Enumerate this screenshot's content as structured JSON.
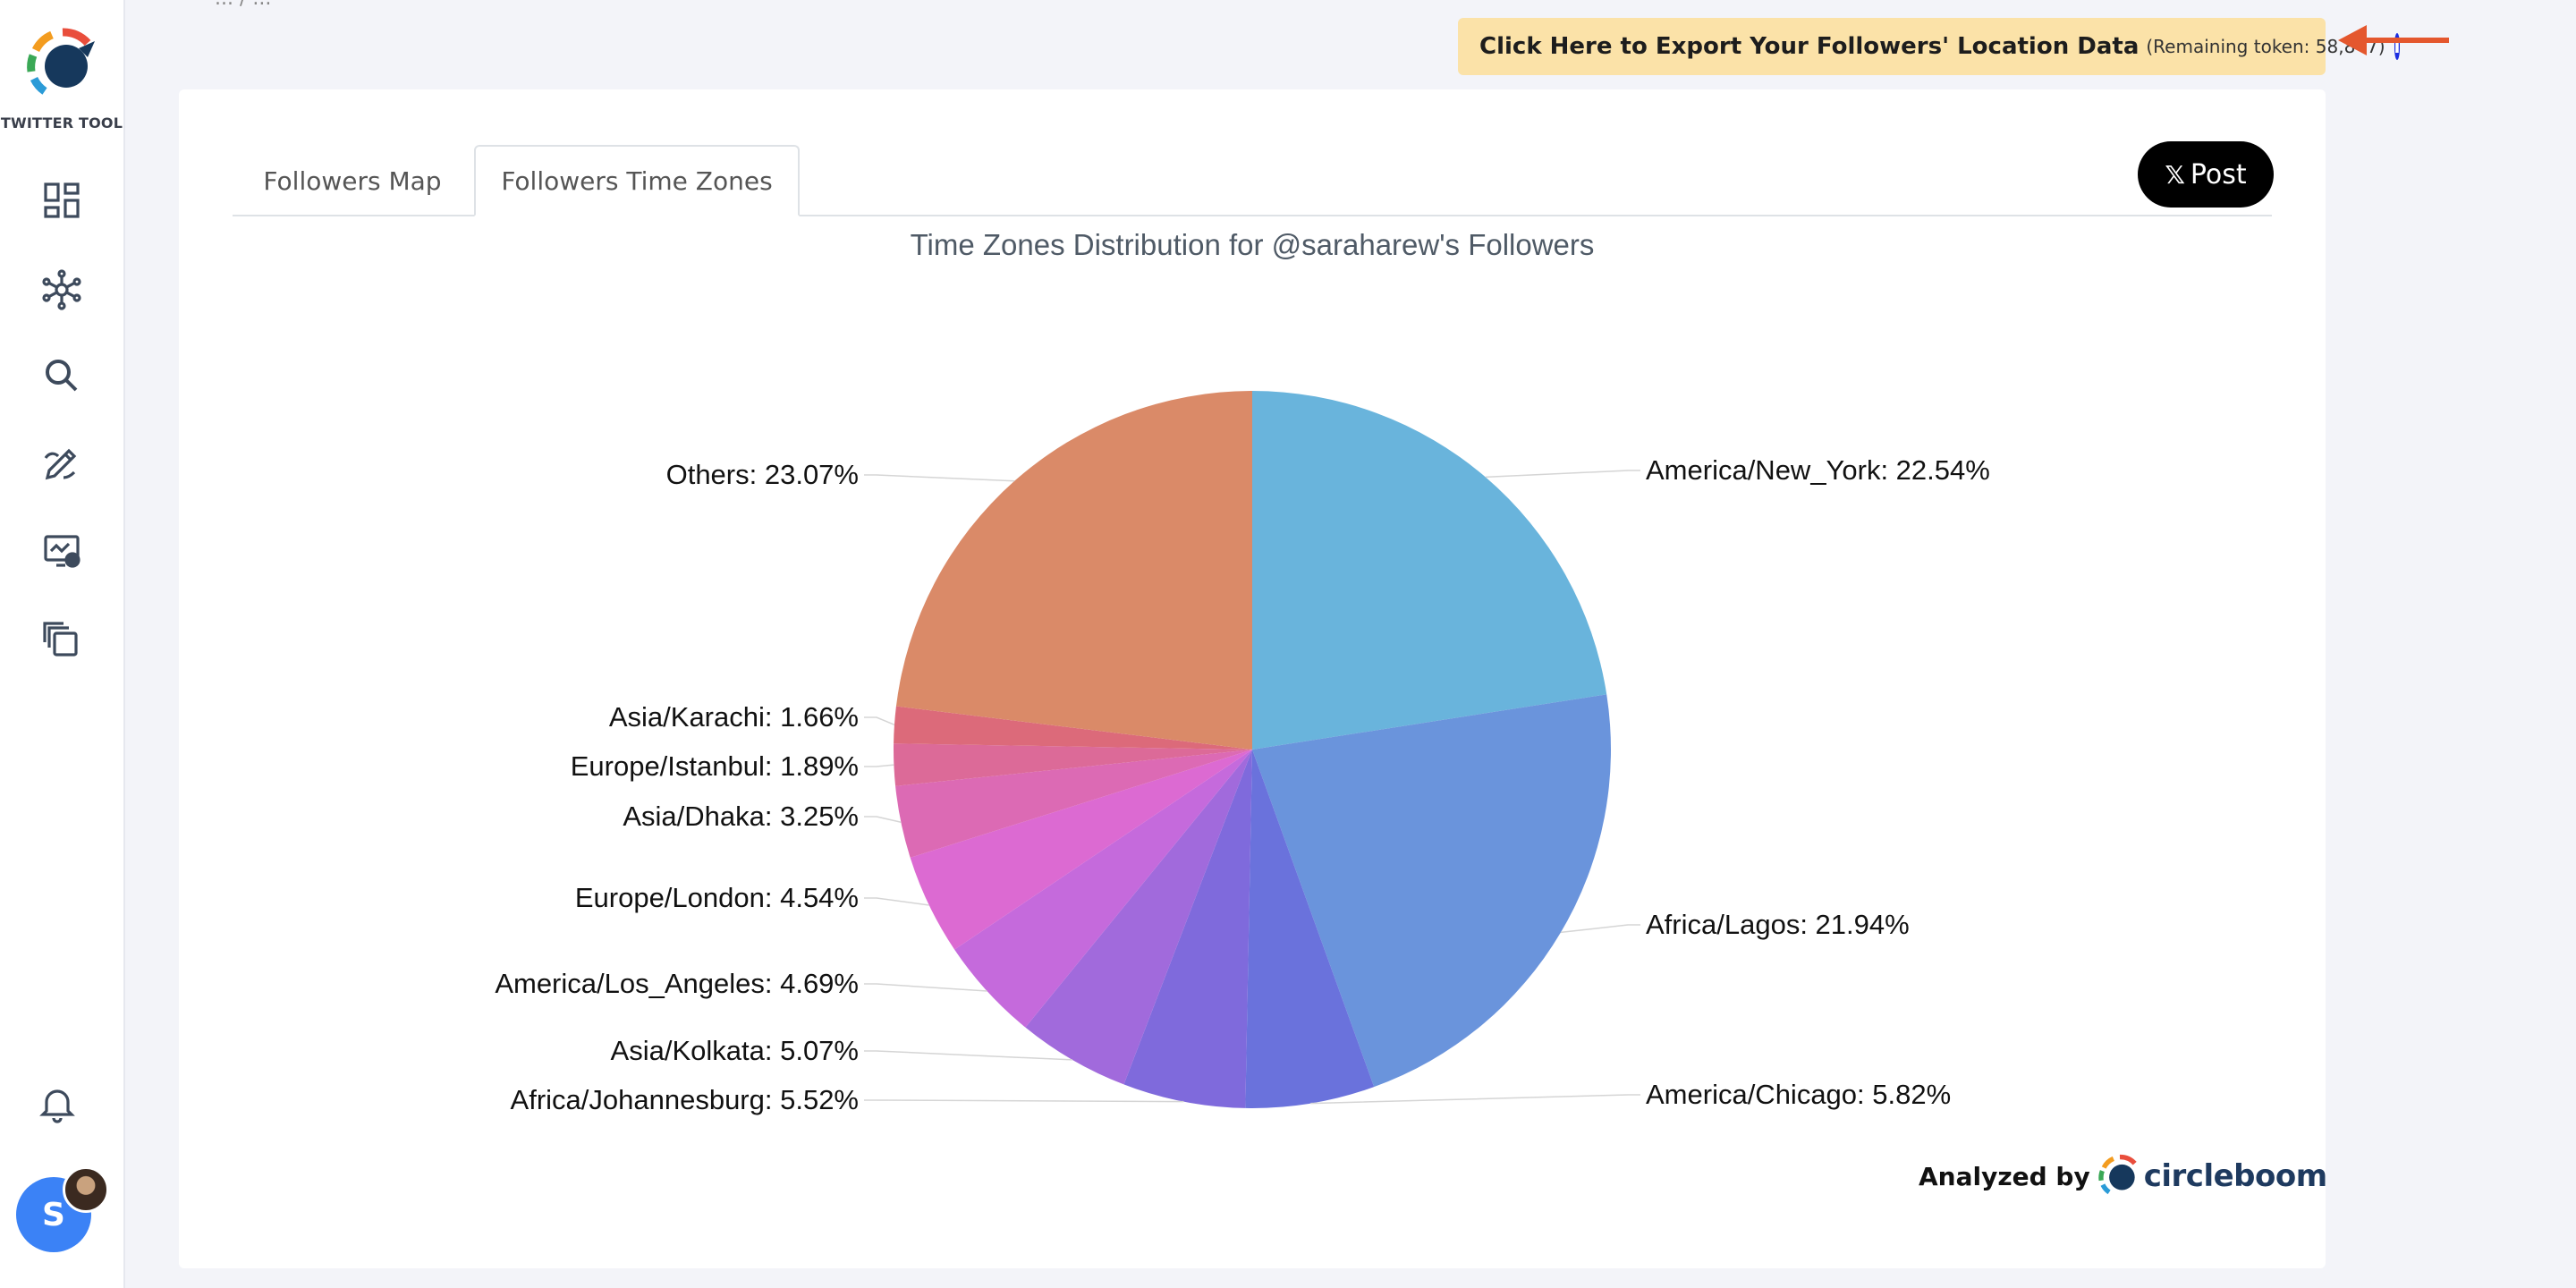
{
  "app": {
    "logo_text": "TWITTER TOOL",
    "nav_icons": [
      "dashboard-icon",
      "network-icon",
      "search-icon",
      "edit-icon",
      "analytics-icon",
      "copy-icon"
    ],
    "bell": "bell-icon",
    "avatar_initial": "S"
  },
  "breadcrumb": "... / ...",
  "export": {
    "label": "Click Here to Export Your Followers' Location Data",
    "token_text": "(Remaining token: 58,847)",
    "info": "i"
  },
  "tabs": [
    {
      "label": "Followers Map"
    },
    {
      "label": "Followers Time Zones"
    }
  ],
  "post_button": {
    "x": "𝕏",
    "label": "Post"
  },
  "footer": {
    "analyzed_by": "Analyzed by",
    "brand": "circleboom"
  },
  "chart_data": {
    "type": "pie",
    "title": "Time Zones Distribution for @saraharew's Followers",
    "slices": [
      {
        "label": "America/New_York: 22.54%",
        "value": 22.54,
        "color": "#69b4dc"
      },
      {
        "label": "Africa/Lagos: 21.94%",
        "value": 21.94,
        "color": "#6a94dc"
      },
      {
        "label": "America/Chicago: 5.82%",
        "value": 5.82,
        "color": "#6a72dc"
      },
      {
        "label": "Africa/Johannesburg: 5.52%",
        "value": 5.52,
        "color": "#7f6adc"
      },
      {
        "label": "Asia/Kolkata: 5.07%",
        "value": 5.07,
        "color": "#a16adc"
      },
      {
        "label": "America/Los_Angeles: 4.69%",
        "value": 4.69,
        "color": "#c56adc"
      },
      {
        "label": "Europe/London: 4.54%",
        "value": 4.54,
        "color": "#dc6ad2"
      },
      {
        "label": "Asia/Dhaka: 3.25%",
        "value": 3.25,
        "color": "#dc6ab4"
      },
      {
        "label": "Europe/Istanbul: 1.89%",
        "value": 1.89,
        "color": "#dc6a98"
      },
      {
        "label": "Asia/Karachi: 1.66%",
        "value": 1.66,
        "color": "#dc6a7a"
      },
      {
        "label": "Others: 23.07%",
        "value": 23.07,
        "color": "#da8a68"
      }
    ]
  }
}
